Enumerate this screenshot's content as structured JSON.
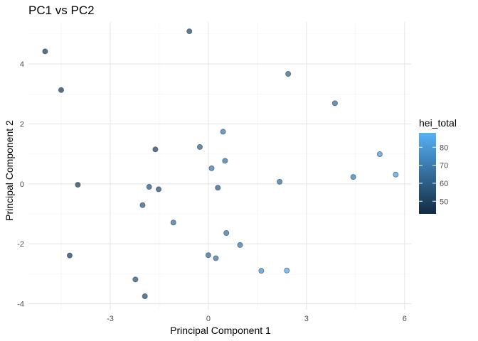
{
  "chart_data": {
    "type": "scatter",
    "title": "PC1 vs PC2",
    "xlabel": "Principal Component 1",
    "ylabel": "Principal Component 2",
    "xlim": [
      -5.5,
      6.2
    ],
    "ylim": [
      -4.2,
      5.4
    ],
    "x_ticks": [
      -3,
      0,
      3,
      6
    ],
    "y_ticks": [
      -4,
      -2,
      0,
      2,
      4
    ],
    "grid": true,
    "legend": {
      "title": "hei_total",
      "position": "right",
      "ticks": [
        50,
        60,
        70,
        80
      ],
      "range": [
        43,
        88
      ],
      "low_color": "#132b43",
      "high_color": "#56b1f7"
    },
    "points": [
      {
        "x": -4.99,
        "y": 4.42,
        "hei_total": 50
      },
      {
        "x": -4.5,
        "y": 3.13,
        "hei_total": 50
      },
      {
        "x": -0.58,
        "y": 5.09,
        "hei_total": 55
      },
      {
        "x": 2.44,
        "y": 3.67,
        "hei_total": 62
      },
      {
        "x": 3.87,
        "y": 2.69,
        "hei_total": 65
      },
      {
        "x": 0.45,
        "y": 1.74,
        "hei_total": 70
      },
      {
        "x": -0.26,
        "y": 1.23,
        "hei_total": 62
      },
      {
        "x": -1.62,
        "y": 1.15,
        "hei_total": 52
      },
      {
        "x": 0.1,
        "y": 0.52,
        "hei_total": 70
      },
      {
        "x": 0.51,
        "y": 0.77,
        "hei_total": 68
      },
      {
        "x": 5.24,
        "y": 0.99,
        "hei_total": 80
      },
      {
        "x": 5.73,
        "y": 0.31,
        "hei_total": 83
      },
      {
        "x": 4.43,
        "y": 0.23,
        "hei_total": 72
      },
      {
        "x": 2.18,
        "y": 0.07,
        "hei_total": 66
      },
      {
        "x": -3.99,
        "y": -0.03,
        "hei_total": 50
      },
      {
        "x": -1.81,
        "y": -0.1,
        "hei_total": 58
      },
      {
        "x": -1.52,
        "y": -0.18,
        "hei_total": 56
      },
      {
        "x": 0.29,
        "y": -0.13,
        "hei_total": 60
      },
      {
        "x": -2.01,
        "y": -0.71,
        "hei_total": 60
      },
      {
        "x": -1.07,
        "y": -1.29,
        "hei_total": 66
      },
      {
        "x": 0.55,
        "y": -1.64,
        "hei_total": 68
      },
      {
        "x": 0.97,
        "y": -2.04,
        "hei_total": 70
      },
      {
        "x": -4.24,
        "y": -2.39,
        "hei_total": 50
      },
      {
        "x": 0.0,
        "y": -2.38,
        "hei_total": 65
      },
      {
        "x": 0.23,
        "y": -2.48,
        "hei_total": 68
      },
      {
        "x": 1.62,
        "y": -2.9,
        "hei_total": 78
      },
      {
        "x": 2.4,
        "y": -2.89,
        "hei_total": 86
      },
      {
        "x": -2.23,
        "y": -3.19,
        "hei_total": 58
      },
      {
        "x": -1.94,
        "y": -3.75,
        "hei_total": 56
      }
    ]
  }
}
